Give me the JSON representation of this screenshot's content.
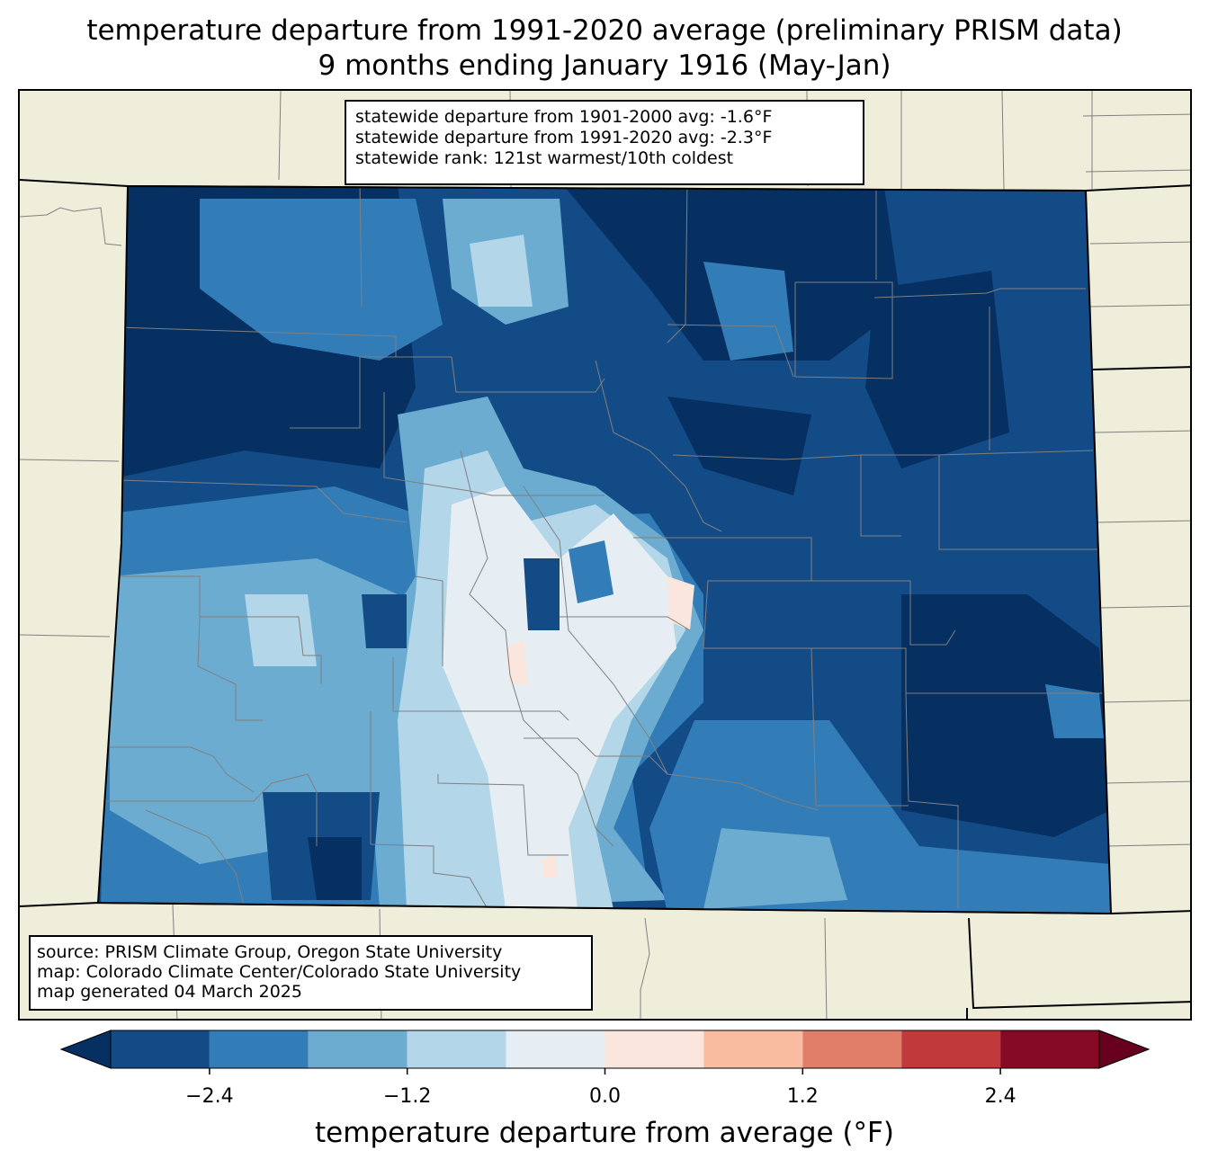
{
  "title": {
    "line1": "temperature departure from 1991-2020 average (preliminary PRISM data)",
    "line2": "9 months ending January 1916 (May-Jan)"
  },
  "stats_box": {
    "line1": "statewide departure from 1901-2000 avg: -1.6°F",
    "line2": "statewide departure from 1991-2020 avg: -2.3°F",
    "line3": "statewide rank: 121st warmest/10th coldest"
  },
  "credit_box": {
    "line1": "source: PRISM Climate Group, Oregon State University",
    "line2": "map: Colorado Climate Center/Colorado State University",
    "line3": "map generated 04 March 2025"
  },
  "colorbar": {
    "label": "temperature departure from average (°F)",
    "ticks": [
      "−2.4",
      "−1.2",
      "0.0",
      "1.2",
      "2.4"
    ],
    "tick_values": [
      -2.4,
      -1.2,
      0.0,
      1.2,
      2.4
    ],
    "bounds": [
      -3.0,
      3.0
    ],
    "step": 0.6,
    "colors": [
      "#053061",
      "#134b87",
      "#327db7",
      "#6bacd0",
      "#b3d6e8",
      "#e6eef3",
      "#fae6dc",
      "#f9bca0",
      "#e17e69",
      "#c0393b",
      "#870a24",
      "#67001f"
    ]
  },
  "map": {
    "background": "#efeedb",
    "state_outline": "#000000",
    "county_lines": "#808080"
  }
}
